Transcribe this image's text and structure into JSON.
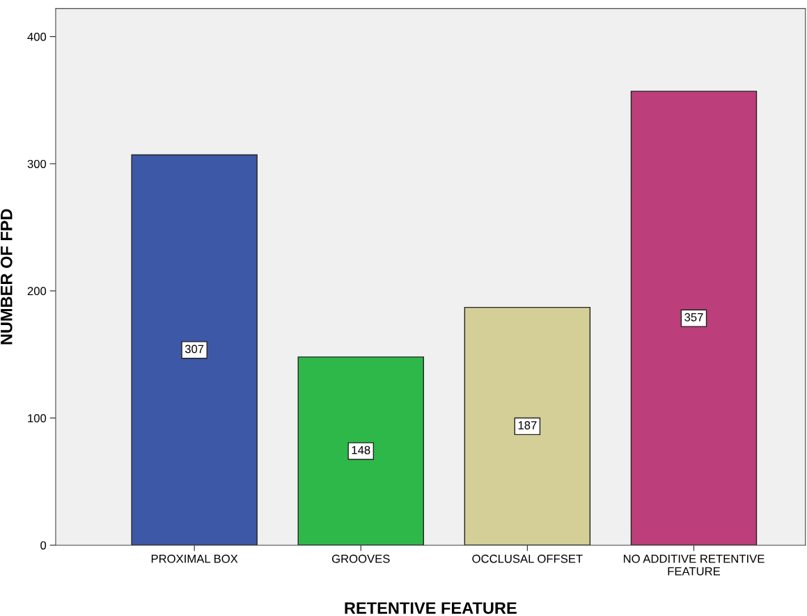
{
  "chart_data": {
    "type": "bar",
    "xlabel": "RETENTIVE FEATURE",
    "ylabel": "NUMBER OF FPD",
    "categories": [
      "PROXIMAL BOX",
      "GROOVES",
      "OCCLUSAL OFFSET",
      "NO ADDITIVE RETENTIVE\nFEATURE"
    ],
    "values": [
      307,
      148,
      187,
      357
    ],
    "colors": [
      "#3e58a8",
      "#2eb84a",
      "#d4cf97",
      "#bc3e7b"
    ],
    "ylim": [
      0,
      422
    ],
    "yticks": [
      0,
      100,
      200,
      300,
      400
    ],
    "grid": false,
    "data_labels": true,
    "legend": false
  }
}
